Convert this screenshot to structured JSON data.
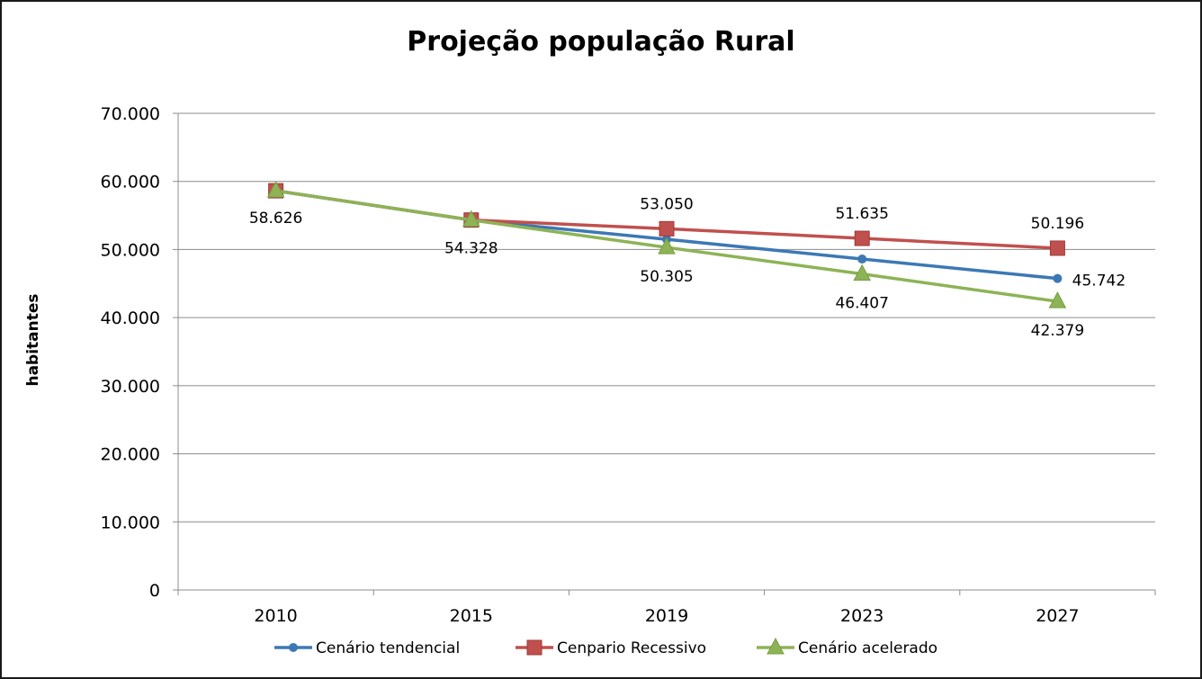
{
  "chart_data": {
    "type": "line",
    "title": "Projeção população Rural",
    "xlabel": "",
    "ylabel": "habitantes",
    "categories": [
      "2010",
      "2015",
      "2019",
      "2023",
      "2027"
    ],
    "ylim": [
      0,
      70000
    ],
    "yticks": [
      {
        "value": 0,
        "label": "0"
      },
      {
        "value": 10000,
        "label": "10.000"
      },
      {
        "value": 20000,
        "label": "20.000"
      },
      {
        "value": 30000,
        "label": "30.000"
      },
      {
        "value": 40000,
        "label": "40.000"
      },
      {
        "value": 50000,
        "label": "50.000"
      },
      {
        "value": 60000,
        "label": "60.000"
      },
      {
        "value": 70000,
        "label": "70.000"
      }
    ],
    "grid": true,
    "legend_position": "bottom",
    "series": [
      {
        "name": "Cenário tendencial",
        "color": "#3c78b4",
        "marker": "circle",
        "values": [
          58626,
          54328,
          51500,
          48600,
          45742
        ],
        "labels": [
          "",
          "",
          "",
          "",
          "45.742"
        ]
      },
      {
        "name": "Cenpario Recessivo",
        "color": "#c0504d",
        "marker": "square",
        "values": [
          58626,
          54328,
          53050,
          51635,
          50196
        ],
        "labels": [
          "",
          "",
          "53.050",
          "51.635",
          "50.196"
        ]
      },
      {
        "name": "Cenário acelerado",
        "color": "#8db356",
        "marker": "triangle",
        "values": [
          58626,
          54328,
          50305,
          46407,
          42379
        ],
        "labels": [
          "58.626",
          "54.328",
          "50.305",
          "46.407",
          "42.379"
        ]
      }
    ]
  }
}
